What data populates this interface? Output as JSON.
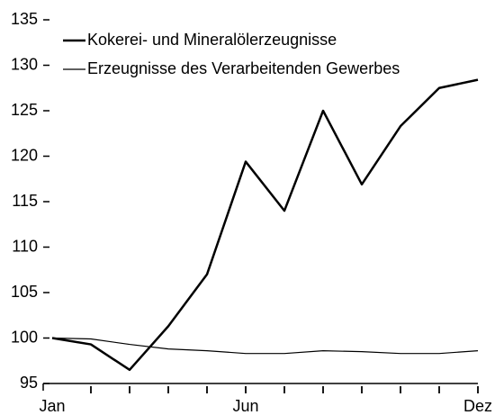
{
  "chart_data": {
    "type": "line",
    "categories": [
      "Jan",
      null,
      null,
      null,
      null,
      "Jun",
      null,
      null,
      null,
      null,
      null,
      "Dez"
    ],
    "series": [
      {
        "name": "Kokerei- und Mineralölerzeugnisse",
        "color": "#000000",
        "width": 2.5,
        "values": [
          100,
          99.3,
          96.5,
          101.3,
          107,
          119.4,
          114,
          125,
          116.9,
          123.3,
          127.5,
          128.4
        ]
      },
      {
        "name": "Erzeugnisse des Verarbeitenden Gewerbes",
        "color": "#000000",
        "width": 1.2,
        "values": [
          100,
          99.9,
          99.3,
          98.8,
          98.6,
          98.3,
          98.3,
          98.6,
          98.5,
          98.3,
          98.3,
          98.6
        ]
      }
    ],
    "ylim": [
      95,
      135
    ],
    "yticks": [
      95,
      100,
      105,
      110,
      115,
      120,
      125,
      130,
      135
    ]
  }
}
